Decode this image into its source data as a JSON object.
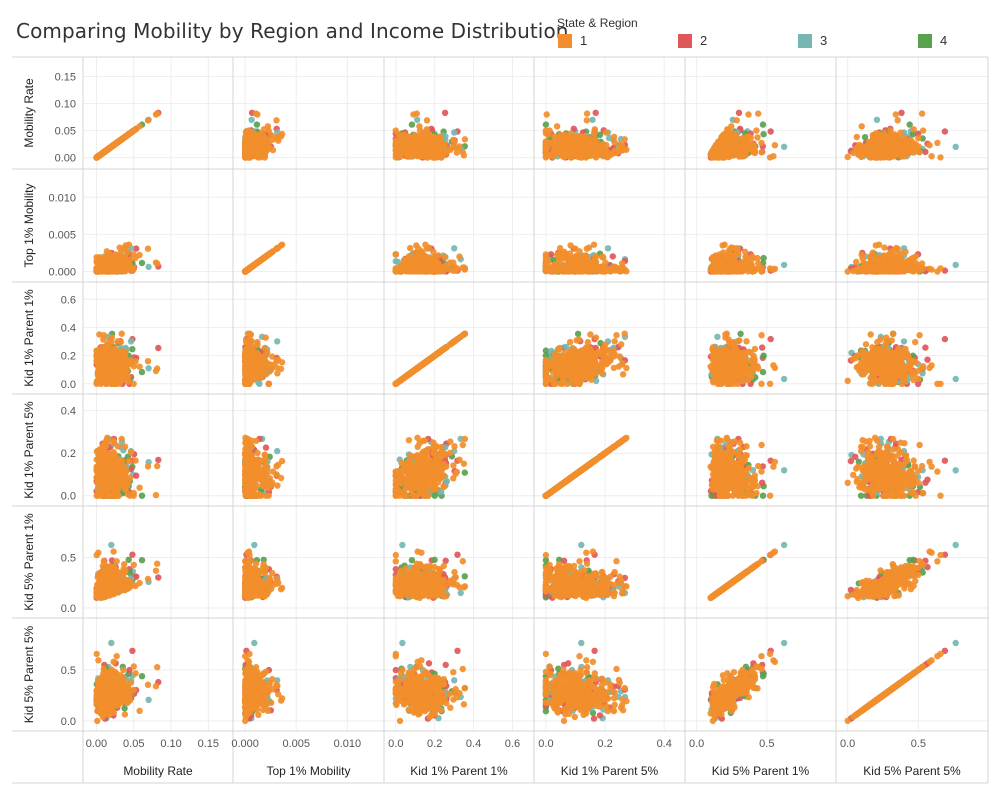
{
  "title": "Comparing Mobility by Region and Income Distribution",
  "legend": {
    "title": "State & Region",
    "items": [
      {
        "label": "1",
        "color": "#f28e2b"
      },
      {
        "label": "2",
        "color": "#e15759"
      },
      {
        "label": "3",
        "color": "#76b7b2"
      },
      {
        "label": "4",
        "color": "#59a14f"
      }
    ]
  },
  "chart_data": {
    "type": "scatter",
    "subtype": "scatter-plot-matrix",
    "title": "Comparing Mobility by Region and Income Distribution",
    "color_legend": "State & Region",
    "series": [
      {
        "name": "1",
        "color": "#f28e2b"
      },
      {
        "name": "2",
        "color": "#e15759"
      },
      {
        "name": "3",
        "color": "#76b7b2"
      },
      {
        "name": "4",
        "color": "#59a14f"
      }
    ],
    "variables": [
      {
        "name": "Mobility Rate",
        "range": [
          -0.01,
          0.175
        ],
        "ticks": [
          0.0,
          0.05,
          0.1,
          0.15
        ],
        "x_tick_labels": [
          "0.00",
          "0.05",
          "0.10",
          "0.15"
        ],
        "y_tick_labels": [
          "0.00",
          "0.05",
          "0.10",
          "0.15"
        ]
      },
      {
        "name": "Top 1% Mobility",
        "range": [
          -0.0006,
          0.013
        ],
        "ticks": [
          0.0,
          0.005,
          0.01
        ],
        "x_tick_labels": [
          "0.000",
          "0.005",
          "0.010"
        ],
        "y_tick_labels": [
          "0.000",
          "0.005",
          "0.010"
        ]
      },
      {
        "name": "Kid 1% Parent 1%",
        "range": [
          -0.03,
          0.68
        ],
        "ticks": [
          0.0,
          0.2,
          0.4,
          0.6
        ],
        "x_tick_labels": [
          "0.0",
          "0.2",
          "0.4",
          "0.6"
        ],
        "y_tick_labels": [
          "0.0",
          "0.2",
          "0.4",
          "0.6"
        ]
      },
      {
        "name": "Kid 1% Parent 5%",
        "range": [
          -0.02,
          0.45
        ],
        "ticks": [
          0.0,
          0.2,
          0.4
        ],
        "x_tick_labels": [
          "0.0",
          "0.2",
          "0.4"
        ],
        "y_tick_labels": [
          "0.0",
          "0.2",
          "0.4"
        ]
      },
      {
        "name": "Kid 5% Parent 1%",
        "range": [
          -0.04,
          0.95
        ],
        "ticks": [
          0.0,
          0.5
        ],
        "x_tick_labels": [
          "0.0",
          "0.5"
        ],
        "y_tick_labels": [
          "0.0",
          "0.5"
        ]
      },
      {
        "name": "Kid 5% Parent 5%",
        "range": [
          -0.04,
          0.95
        ],
        "ticks": [
          0.0,
          0.5
        ],
        "x_tick_labels": [
          "0.0",
          "0.5"
        ],
        "y_tick_labels": [
          "0.0",
          "0.5"
        ]
      }
    ],
    "grid": true,
    "legend_position": "top-right"
  }
}
